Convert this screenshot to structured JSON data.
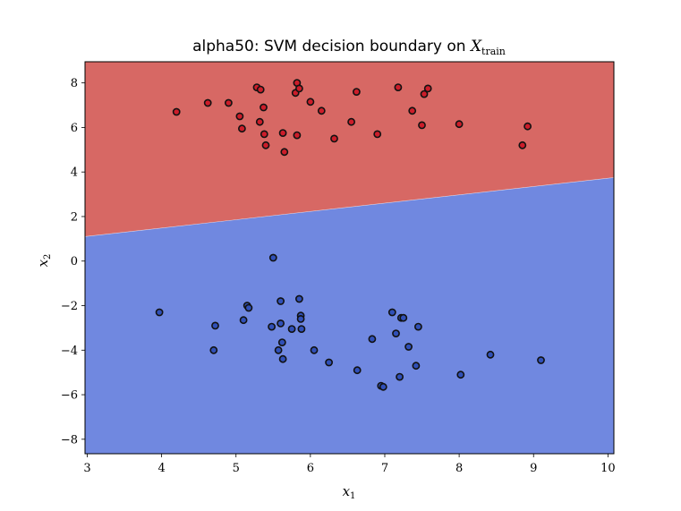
{
  "chart_data": {
    "type": "scatter",
    "title_text": "alpha50: SVM decision boundary on ",
    "title_math": "X",
    "title_math_sub": "train",
    "xlabel": "x",
    "xlabel_sub": "1",
    "ylabel": "x",
    "ylabel_sub": "2",
    "xlim": [
      2.97,
      10.08
    ],
    "ylim": [
      -8.65,
      8.95
    ],
    "xticks": [
      3,
      4,
      5,
      6,
      7,
      8,
      9,
      10
    ],
    "yticks": [
      -8,
      -6,
      -4,
      -2,
      0,
      2,
      4,
      6,
      8
    ],
    "ytick_labels": [
      "−8",
      "−6",
      "−4",
      "−2",
      "0",
      "2",
      "4",
      "6",
      "8"
    ],
    "grid": false,
    "decision_boundary": [
      [
        2.97,
        1.1
      ],
      [
        10.08,
        3.75
      ]
    ],
    "region_colors": {
      "upper": "#d76864",
      "lower": "#7088e0"
    },
    "series": [
      {
        "color": "#cc1d2a",
        "points": [
          [
            4.2,
            6.7
          ],
          [
            4.62,
            7.1
          ],
          [
            4.9,
            7.1
          ],
          [
            5.05,
            6.5
          ],
          [
            5.08,
            5.95
          ],
          [
            5.28,
            7.8
          ],
          [
            5.33,
            7.7
          ],
          [
            5.32,
            6.25
          ],
          [
            5.37,
            6.9
          ],
          [
            5.38,
            5.7
          ],
          [
            5.4,
            5.2
          ],
          [
            5.63,
            5.75
          ],
          [
            5.65,
            4.9
          ],
          [
            5.8,
            7.55
          ],
          [
            5.82,
            8.0
          ],
          [
            5.85,
            7.75
          ],
          [
            5.82,
            5.65
          ],
          [
            6.0,
            7.15
          ],
          [
            6.15,
            6.75
          ],
          [
            6.32,
            5.5
          ],
          [
            6.55,
            6.25
          ],
          [
            6.62,
            7.6
          ],
          [
            6.9,
            5.7
          ],
          [
            7.18,
            7.8
          ],
          [
            7.37,
            6.75
          ],
          [
            7.5,
            6.1
          ],
          [
            7.53,
            7.5
          ],
          [
            7.58,
            7.75
          ],
          [
            8.0,
            6.15
          ],
          [
            8.85,
            5.2
          ],
          [
            8.92,
            6.05
          ]
        ]
      },
      {
        "color": "#3050b8",
        "points": [
          [
            3.97,
            -2.3
          ],
          [
            4.7,
            -4.0
          ],
          [
            4.72,
            -2.9
          ],
          [
            5.1,
            -2.65
          ],
          [
            5.15,
            -2.0
          ],
          [
            5.17,
            -2.1
          ],
          [
            5.5,
            0.15
          ],
          [
            5.48,
            -2.95
          ],
          [
            5.57,
            -4.0
          ],
          [
            5.6,
            -1.8
          ],
          [
            5.6,
            -2.8
          ],
          [
            5.62,
            -3.65
          ],
          [
            5.63,
            -4.4
          ],
          [
            5.75,
            -3.05
          ],
          [
            5.85,
            -1.7
          ],
          [
            5.87,
            -2.45
          ],
          [
            5.87,
            -2.6
          ],
          [
            5.88,
            -3.05
          ],
          [
            6.05,
            -4.0
          ],
          [
            6.25,
            -4.55
          ],
          [
            6.63,
            -4.9
          ],
          [
            6.83,
            -3.5
          ],
          [
            6.95,
            -5.6
          ],
          [
            6.98,
            -5.65
          ],
          [
            7.1,
            -2.3
          ],
          [
            7.15,
            -3.25
          ],
          [
            7.2,
            -5.2
          ],
          [
            7.22,
            -2.55
          ],
          [
            7.25,
            -2.55
          ],
          [
            7.32,
            -3.85
          ],
          [
            7.42,
            -4.7
          ],
          [
            7.45,
            -2.95
          ],
          [
            8.02,
            -5.1
          ],
          [
            8.42,
            -4.2
          ],
          [
            9.1,
            -4.45
          ]
        ]
      }
    ]
  }
}
